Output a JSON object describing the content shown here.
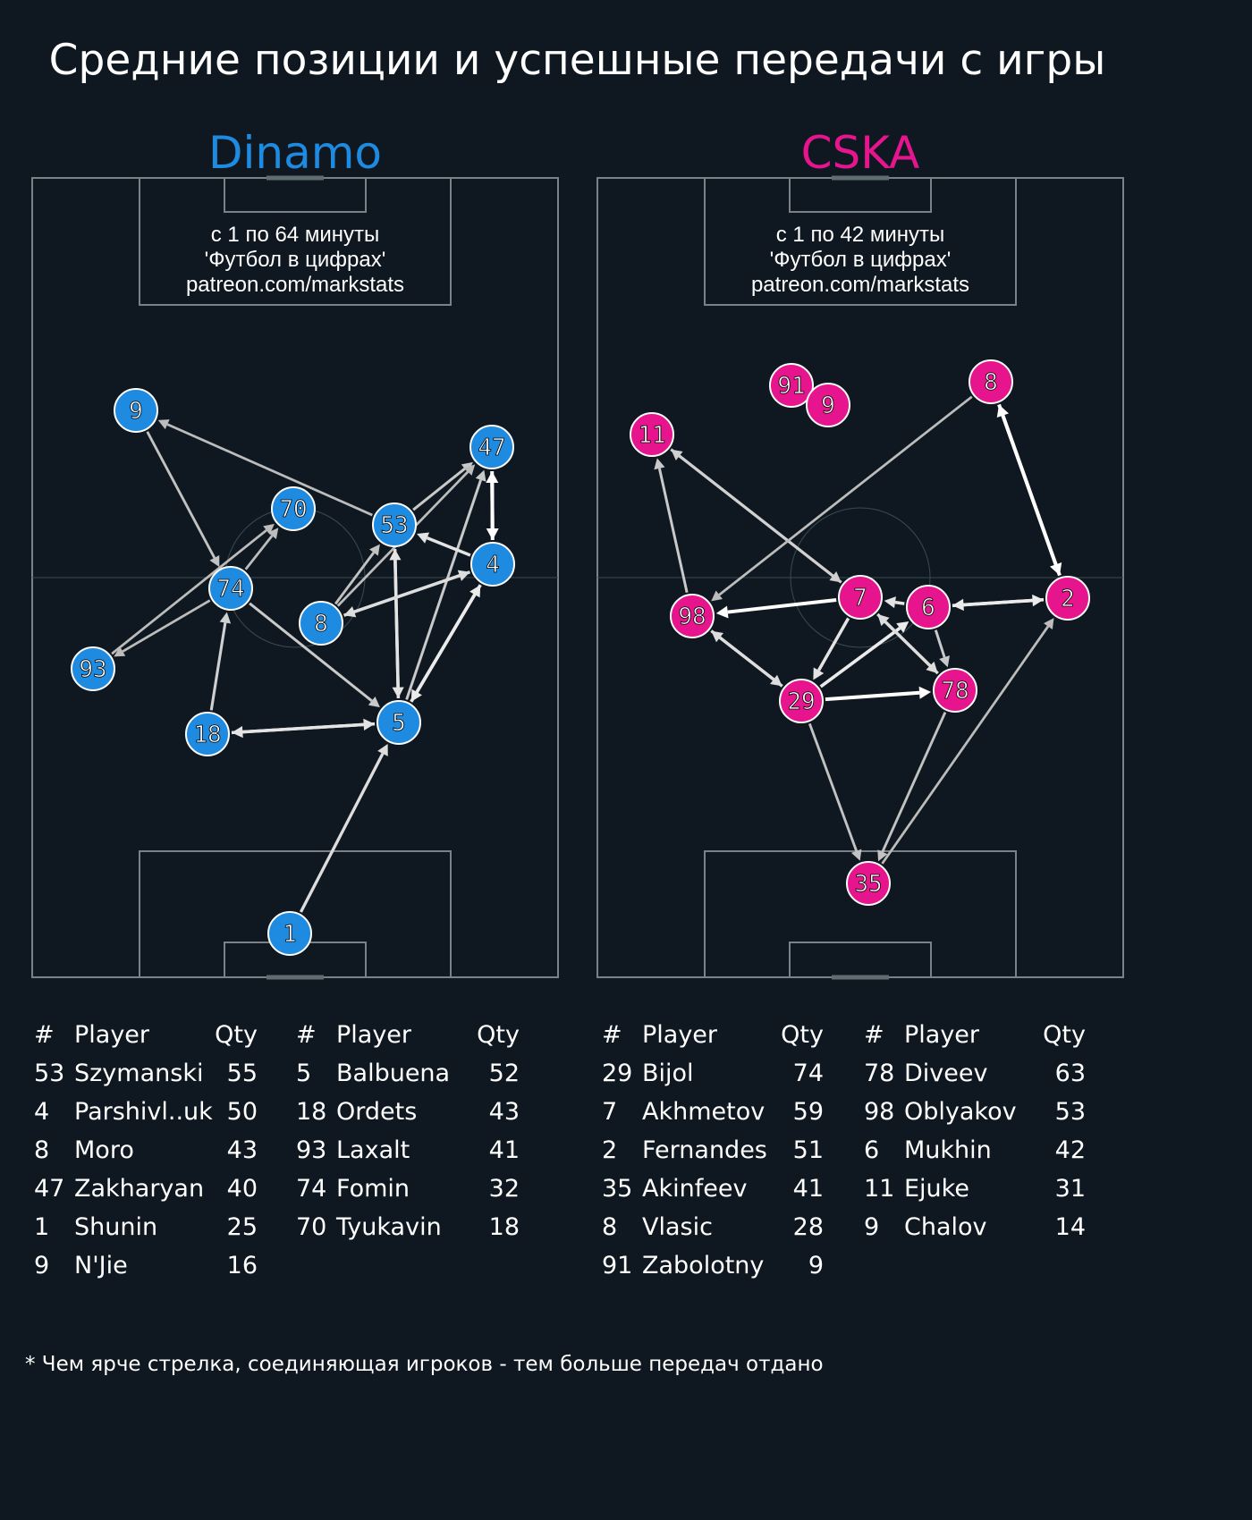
{
  "title": "Средние позиции и успешные передачи с игры",
  "footnote": "* Чем ярче стрелка, соединяющая игроков - тем больше передач отдано",
  "colors": {
    "background": "#0f1820",
    "pitch_lines": "#7a8288",
    "dinamo": "#1f8be0",
    "cska": "#e6158e"
  },
  "teams": [
    {
      "name": "Dinamo",
      "info": [
        "с 1 по 64 минуты",
        "'Футбол в цифрах'",
        "patreon.com/markstats"
      ],
      "players": [
        {
          "num": "9"
        },
        {
          "num": "47"
        },
        {
          "num": "70"
        },
        {
          "num": "53"
        },
        {
          "num": "4"
        },
        {
          "num": "74"
        },
        {
          "num": "8"
        },
        {
          "num": "93"
        },
        {
          "num": "18"
        },
        {
          "num": "5"
        },
        {
          "num": "1"
        }
      ],
      "passes": [
        {
          "from": "53",
          "to": "9",
          "strength": 0.5
        },
        {
          "from": "9",
          "to": "74",
          "strength": 0.55
        },
        {
          "from": "74",
          "to": "70",
          "strength": 0.5
        },
        {
          "from": "74",
          "to": "93",
          "strength": 0.5
        },
        {
          "from": "93",
          "to": "70",
          "strength": 0.5
        },
        {
          "from": "18",
          "to": "74",
          "strength": 0.65
        },
        {
          "from": "74",
          "to": "5",
          "strength": 0.6
        },
        {
          "from": "18",
          "to": "5",
          "strength": 0.8
        },
        {
          "from": "5",
          "to": "18",
          "strength": 0.8
        },
        {
          "from": "1",
          "to": "5",
          "strength": 0.75
        },
        {
          "from": "5",
          "to": "53",
          "strength": 0.8
        },
        {
          "from": "53",
          "to": "5",
          "strength": 0.8
        },
        {
          "from": "5",
          "to": "4",
          "strength": 0.85
        },
        {
          "from": "4",
          "to": "5",
          "strength": 0.85
        },
        {
          "from": "5",
          "to": "47",
          "strength": 0.6
        },
        {
          "from": "4",
          "to": "53",
          "strength": 0.8
        },
        {
          "from": "47",
          "to": "4",
          "strength": 1.0
        },
        {
          "from": "4",
          "to": "47",
          "strength": 1.0
        },
        {
          "from": "53",
          "to": "47",
          "strength": 0.6
        },
        {
          "from": "8",
          "to": "47",
          "strength": 0.5
        },
        {
          "from": "8",
          "to": "53",
          "strength": 0.55
        },
        {
          "from": "4",
          "to": "8",
          "strength": 0.75
        },
        {
          "from": "8",
          "to": "4",
          "strength": 0.75
        }
      ],
      "table_header": [
        "#",
        "Player",
        "Qty"
      ],
      "table_left": [
        {
          "num": "53",
          "name": "Szymanski",
          "qty": "55"
        },
        {
          "num": "4",
          "name": "Parshivl..uk",
          "qty": "50"
        },
        {
          "num": "8",
          "name": "Moro",
          "qty": "43"
        },
        {
          "num": "47",
          "name": "Zakharyan",
          "qty": "40"
        },
        {
          "num": "1",
          "name": "Shunin",
          "qty": "25"
        },
        {
          "num": "9",
          "name": "N'Jie",
          "qty": "16"
        }
      ],
      "table_right": [
        {
          "num": "5",
          "name": "Balbuena",
          "qty": "52"
        },
        {
          "num": "18",
          "name": "Ordets",
          "qty": "43"
        },
        {
          "num": "93",
          "name": "Laxalt",
          "qty": "41"
        },
        {
          "num": "74",
          "name": "Fomin",
          "qty": "32"
        },
        {
          "num": "70",
          "name": "Tyukavin",
          "qty": "18"
        }
      ]
    },
    {
      "name": "CSKA",
      "info": [
        "с 1 по 42 минуты",
        "'Футбол в цифрах'",
        "patreon.com/markstats"
      ],
      "players": [
        {
          "num": "91"
        },
        {
          "num": "9"
        },
        {
          "num": "8"
        },
        {
          "num": "11"
        },
        {
          "num": "7"
        },
        {
          "num": "6"
        },
        {
          "num": "2"
        },
        {
          "num": "98"
        },
        {
          "num": "29"
        },
        {
          "num": "78"
        },
        {
          "num": "35"
        }
      ],
      "passes": [
        {
          "from": "98",
          "to": "11",
          "strength": 0.6
        },
        {
          "from": "11",
          "to": "7",
          "strength": 0.65
        },
        {
          "from": "7",
          "to": "11",
          "strength": 0.65
        },
        {
          "from": "8",
          "to": "98",
          "strength": 0.5
        },
        {
          "from": "8",
          "to": "2",
          "strength": 1.0
        },
        {
          "from": "2",
          "to": "8",
          "strength": 1.0
        },
        {
          "from": "7",
          "to": "98",
          "strength": 1.0
        },
        {
          "from": "6",
          "to": "7",
          "strength": 0.8
        },
        {
          "from": "6",
          "to": "2",
          "strength": 0.85
        },
        {
          "from": "2",
          "to": "6",
          "strength": 0.85
        },
        {
          "from": "98",
          "to": "29",
          "strength": 0.75
        },
        {
          "from": "29",
          "to": "98",
          "strength": 0.75
        },
        {
          "from": "7",
          "to": "29",
          "strength": 0.8
        },
        {
          "from": "29",
          "to": "6",
          "strength": 0.85
        },
        {
          "from": "6",
          "to": "78",
          "strength": 0.6
        },
        {
          "from": "7",
          "to": "78",
          "strength": 0.75
        },
        {
          "from": "78",
          "to": "7",
          "strength": 0.75
        },
        {
          "from": "29",
          "to": "78",
          "strength": 1.0
        },
        {
          "from": "29",
          "to": "35",
          "strength": 0.55
        },
        {
          "from": "78",
          "to": "35",
          "strength": 0.55
        },
        {
          "from": "35",
          "to": "2",
          "strength": 0.5
        }
      ],
      "table_header": [
        "#",
        "Player",
        "Qty"
      ],
      "table_left": [
        {
          "num": "29",
          "name": "Bijol",
          "qty": "74"
        },
        {
          "num": "7",
          "name": "Akhmetov",
          "qty": "59"
        },
        {
          "num": "2",
          "name": "Fernandes",
          "qty": "51"
        },
        {
          "num": "35",
          "name": "Akinfeev",
          "qty": "41"
        },
        {
          "num": "8",
          "name": "Vlasic",
          "qty": "28"
        },
        {
          "num": "91",
          "name": "Zabolotny",
          "qty": "9"
        }
      ],
      "table_right": [
        {
          "num": "78",
          "name": "Diveev",
          "qty": "63"
        },
        {
          "num": "98",
          "name": "Oblyakov",
          "qty": "53"
        },
        {
          "num": "6",
          "name": "Mukhin",
          "qty": "42"
        },
        {
          "num": "11",
          "name": "Ejuke",
          "qty": "31"
        },
        {
          "num": "9",
          "name": "Chalov",
          "qty": "14"
        }
      ]
    }
  ]
}
